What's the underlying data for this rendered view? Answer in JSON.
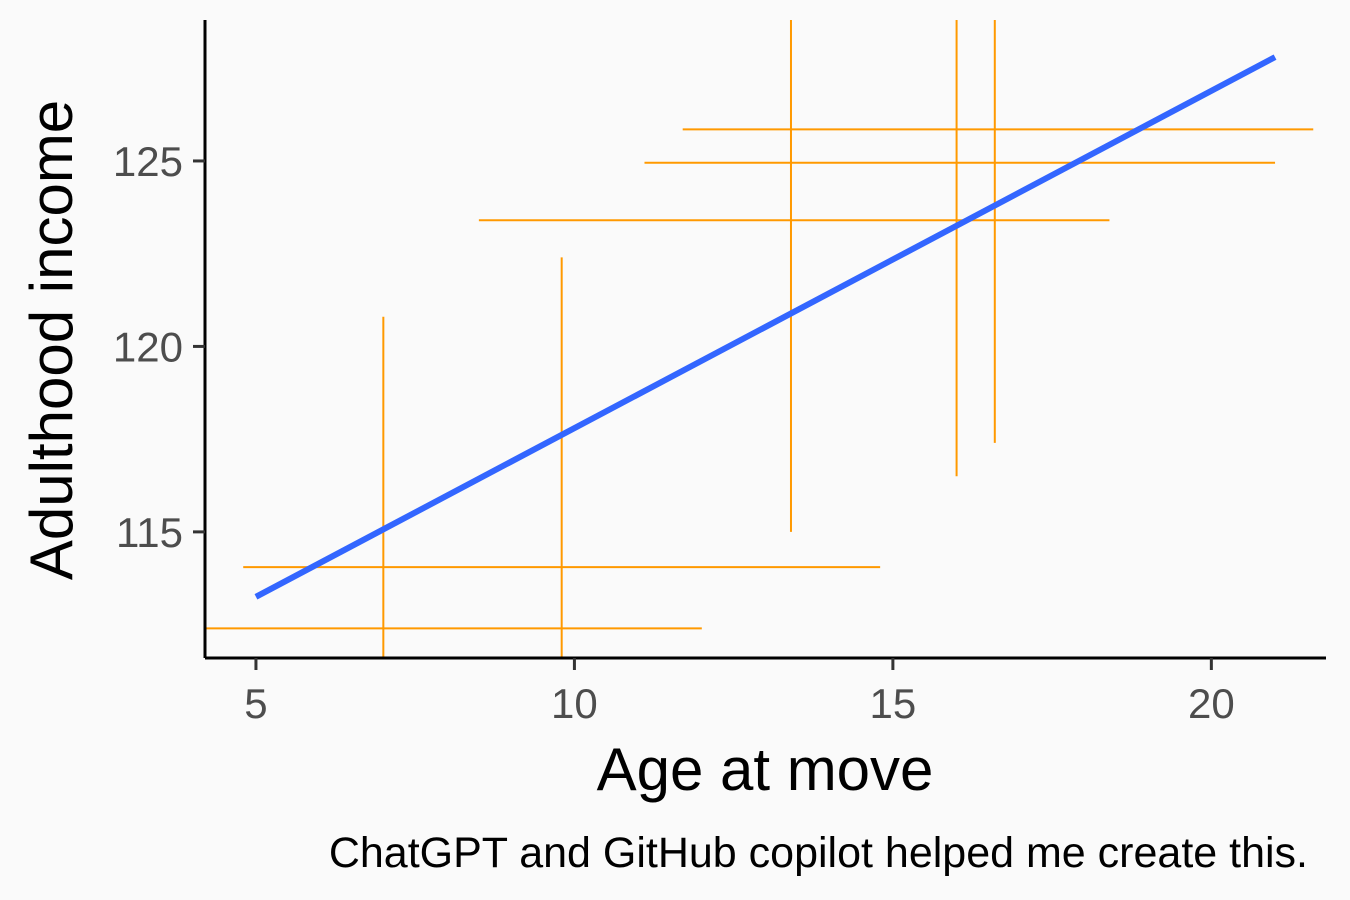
{
  "chart_data": {
    "type": "scatter",
    "xlabel": "Age at move",
    "ylabel": "Adulthood income",
    "caption": "ChatGPT and GitHub copilot helped me create this.",
    "xlim": [
      4.2,
      21.8
    ],
    "ylim": [
      111.6,
      128.8
    ],
    "x_ticks": [
      5,
      10,
      15,
      20
    ],
    "x_tick_labels": [
      "5",
      "10",
      "15",
      "20"
    ],
    "y_ticks": [
      115,
      120,
      125
    ],
    "y_tick_labels": [
      "115",
      "120",
      "125"
    ],
    "grid": false,
    "legend": "none",
    "fit_line": {
      "x": [
        5,
        21
      ],
      "y": [
        113.25,
        127.8
      ],
      "color": "#3366ff"
    },
    "points": [
      {
        "x": 7.0,
        "y": 112.4,
        "xmin": 4.2,
        "xmax": 12.0,
        "ymin": 111.6,
        "ymax": 120.8
      },
      {
        "x": 9.8,
        "y": 114.05,
        "xmin": 4.8,
        "xmax": 14.8,
        "ymin": 111.6,
        "ymax": 122.4
      },
      {
        "x": 13.4,
        "y": 123.4,
        "xmin": 8.5,
        "xmax": 18.4,
        "ymin": 115.0,
        "ymax": 128.8
      },
      {
        "x": 16.0,
        "y": 124.95,
        "xmin": 11.1,
        "xmax": 21.0,
        "ymin": 116.5,
        "ymax": 128.8
      },
      {
        "x": 16.6,
        "y": 125.85,
        "xmin": 11.7,
        "xmax": 21.6,
        "ymin": 117.4,
        "ymax": 128.8
      }
    ],
    "errorbar_color": "#ff9900"
  }
}
